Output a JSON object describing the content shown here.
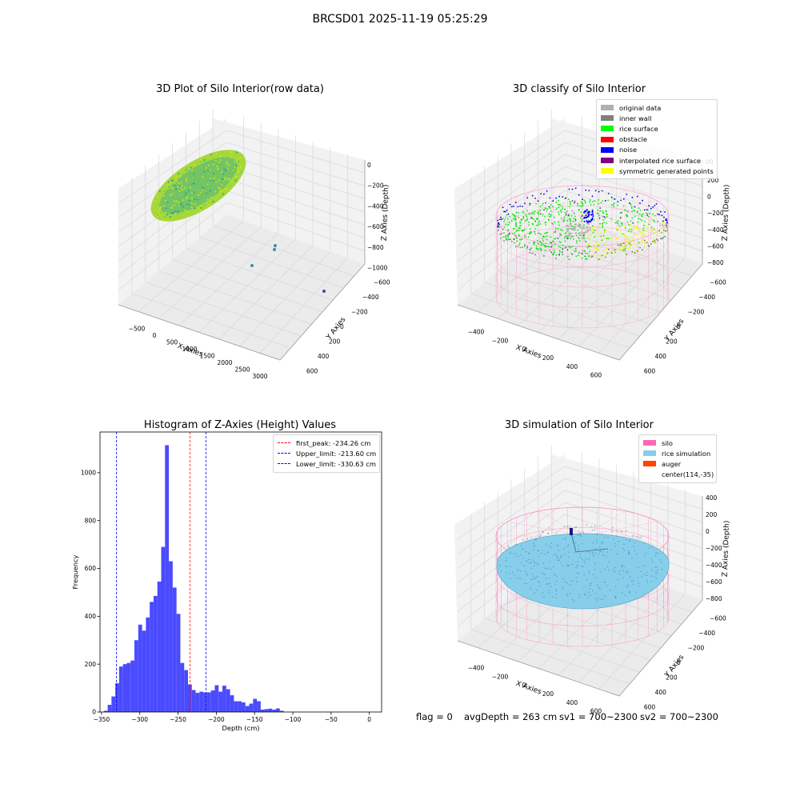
{
  "figure": {
    "title": "BRCSD01 2025-11-19 05:25:29",
    "footer": {
      "flag": "flag = 0",
      "avg_depth": "avgDepth = 263 cm",
      "sv1": "sv1 = 700~2300",
      "sv2": "sv2 = 700~2300"
    }
  },
  "colors": {
    "original_data": "#b0b0b0",
    "inner_wall": "#808080",
    "rice_surface": "#00ff00",
    "obstacle": "#ff0000",
    "noise": "#0000ff",
    "interpolated_rice_surface": "#800080",
    "symmetric_generated_points": "#ffff00",
    "silo": "#ff69b4",
    "rice_simulation": "#87ceeb",
    "auger": "#ff4500",
    "histogram_bars": "#4a4aff",
    "first_peak_line": "#ff0000",
    "limit_lines": "#0000ff"
  },
  "chart_data": [
    {
      "type": "scatter",
      "title": "3D Plot of Silo Interior(row data)",
      "xlabel": "X Axies",
      "ylabel": "Y Axies",
      "zlabel": "Z Axies (Depth)",
      "x_ticks": [
        "−500",
        "0",
        "500",
        "1000",
        "1500",
        "2000",
        "2500",
        "3000"
      ],
      "y_ticks": [
        "600",
        "400",
        "200",
        "0",
        "−200",
        "−400",
        "−600"
      ],
      "z_ticks": [
        "0",
        "−200",
        "−400",
        "−600",
        "−800",
        "−1000"
      ]
    },
    {
      "type": "scatter",
      "title": "3D classify of Silo Interior",
      "xlabel": "X Axies",
      "ylabel": "Y Axies",
      "zlabel": "Z Axies (Depth)",
      "x_ticks": [
        "−400",
        "−200",
        "0",
        "200",
        "400",
        "600"
      ],
      "y_ticks": [
        "600",
        "400",
        "200",
        "0",
        "−200",
        "−400",
        "−600"
      ],
      "z_ticks": [
        "200",
        "0",
        "−200",
        "−400",
        "−600",
        "−800"
      ],
      "z_tick_partial": "00",
      "legend": [
        {
          "label": "original data",
          "color": "#b0b0b0"
        },
        {
          "label": "inner wall",
          "color": "#808080"
        },
        {
          "label": "rice surface",
          "color": "#00ff00"
        },
        {
          "label": "obstacle",
          "color": "#ff0000"
        },
        {
          "label": "noise",
          "color": "#0000ff"
        },
        {
          "label": "interpolated rice surface",
          "color": "#800080"
        },
        {
          "label": "symmetric generated points",
          "color": "#ffff00"
        }
      ]
    },
    {
      "type": "bar",
      "title": "Histogram of Z-Axies (Height) Values",
      "xlabel": "Depth (cm)",
      "ylabel": "Frequency",
      "xlim": [
        -352,
        16
      ],
      "ylim": [
        0,
        1170
      ],
      "x_ticks": [
        -350,
        -300,
        -250,
        -200,
        -150,
        -100,
        -50,
        0
      ],
      "y_ticks": [
        0,
        200,
        400,
        600,
        800,
        1000
      ],
      "bin_start": -347,
      "bin_width": 5,
      "values": [
        5,
        30,
        65,
        120,
        190,
        200,
        205,
        215,
        300,
        365,
        340,
        395,
        460,
        485,
        545,
        690,
        1115,
        630,
        520,
        410,
        205,
        175,
        115,
        92,
        80,
        85,
        82,
        82,
        90,
        112,
        85,
        110,
        95,
        70,
        45,
        45,
        40,
        25,
        35,
        55,
        45,
        10,
        12,
        14,
        10,
        15,
        5
      ],
      "vlines": [
        {
          "label": "first_peak: -234.26 cm",
          "x": -234.26,
          "color": "#ff0000"
        },
        {
          "label": "Upper_limit: -213.60 cm",
          "x": -213.6,
          "color": "#0000ff"
        },
        {
          "label": "Lower_limit: -330.63 cm",
          "x": -330.63,
          "color": "#0000ff"
        }
      ]
    },
    {
      "type": "scatter",
      "title": "3D simulation of Silo Interior",
      "xlabel": "X Axies",
      "ylabel": "Y Axies",
      "zlabel": "Z Axies (Depth)",
      "x_ticks": [
        "−400",
        "−200",
        "0",
        "200",
        "400",
        "600"
      ],
      "y_ticks": [
        "600",
        "400",
        "200",
        "0",
        "−200",
        "−400",
        "−600"
      ],
      "z_ticks": [
        "400",
        "200",
        "0",
        "−200",
        "−400",
        "−600",
        "−800"
      ],
      "legend": [
        {
          "label": "silo",
          "color": "#ff69b4"
        },
        {
          "label": "rice simulation",
          "color": "#87ceeb"
        },
        {
          "label": "auger",
          "color": "#ff4500"
        },
        {
          "label": "center(114,-35)",
          "color": ""
        }
      ]
    }
  ]
}
